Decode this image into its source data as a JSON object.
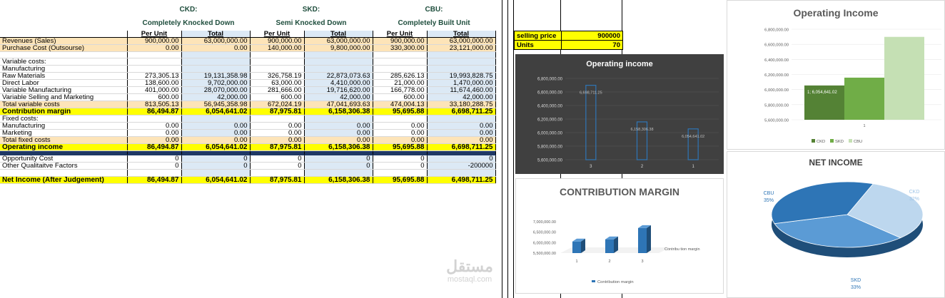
{
  "headers": [
    {
      "code": "CKD:",
      "name": "Completely Knocked Down"
    },
    {
      "code": "SKD:",
      "name": "Semi Knocked Down"
    },
    {
      "code": "CBU:",
      "name": "Completely Built Unit"
    }
  ],
  "col_headers": [
    "Per Unit",
    "Total",
    "Per Unit",
    "Total",
    "Per Unit",
    "Total"
  ],
  "rows": [
    {
      "label": "Revenues  (Sales)",
      "style": "orange",
      "values": [
        "900,000.00",
        "63,000,000.00",
        "900,000.00",
        "63,000,000.00",
        "900,000.00",
        "63,000,000.00"
      ]
    },
    {
      "label": "Purchase Cost (Outsourse)",
      "style": "orange",
      "values": [
        "0.00",
        "0.00",
        "140,000.00",
        "9,800,000.00",
        "330,300.00",
        "23,121,000.00"
      ]
    },
    {
      "label": "",
      "style": "",
      "values": [
        "",
        "",
        "",
        "",
        "",
        ""
      ]
    },
    {
      "label": "Variable costs:",
      "style": "",
      "values": [
        "",
        "",
        "",
        "",
        "",
        ""
      ]
    },
    {
      "label": "Manufacturing",
      "style": "",
      "values": [
        "",
        "",
        "",
        "",
        "",
        ""
      ]
    },
    {
      "label": "Raw Materials",
      "style": "",
      "values": [
        "273,305.13",
        "19,131,358.98",
        "326,758.19",
        "22,873,073.63",
        "285,626.13",
        "19,993,828.75"
      ]
    },
    {
      "label": "Direct Labor",
      "style": "",
      "values": [
        "138,600.00",
        "9,702,000.00",
        "63,000.00",
        "4,410,000.00",
        "21,000.00",
        "1,470,000.00"
      ]
    },
    {
      "label": "Variable Manufacturing",
      "style": "",
      "values": [
        "401,000.00",
        "28,070,000.00",
        "281,666.00",
        "19,716,620.00",
        "166,778.00",
        "11,674,460.00"
      ]
    },
    {
      "label": "Variable Selling and Marketing",
      "style": "",
      "values": [
        "600.00",
        "42,000.00",
        "600.00",
        "42,000.00",
        "600.00",
        "42,000.00"
      ]
    },
    {
      "label": "Total variable costs",
      "style": "orange",
      "values": [
        "813,505.13",
        "56,945,358.98",
        "672,024.19",
        "47,041,693.63",
        "474,004.13",
        "33,180,288.75"
      ]
    },
    {
      "label": "Contribution margin",
      "style": "yellow",
      "values": [
        "86,494.87",
        "6,054,641.02",
        "87,975.81",
        "6,158,306.38",
        "95,695.88",
        "6,698,711.25"
      ]
    },
    {
      "label": "Fixed costs:",
      "style": "",
      "values": [
        "",
        "",
        "",
        "",
        "",
        ""
      ]
    },
    {
      "label": "Manufacturing",
      "style": "",
      "values": [
        "0.00",
        "0.00",
        "0.00",
        "0.00",
        "0.00",
        "0.00"
      ]
    },
    {
      "label": "Marketing",
      "style": "",
      "values": [
        "0.00",
        "0.00",
        "0.00",
        "0.00",
        "0.00",
        "0.00"
      ]
    },
    {
      "label": "Total fixed costs",
      "style": "orange",
      "values": [
        "0.00",
        "0.00",
        "0.00",
        "0.00",
        "0.00",
        "0.00"
      ]
    },
    {
      "label": "Operating income",
      "style": "yellow",
      "values": [
        "86,494.87",
        "6,054,641.02",
        "87,975.81",
        "6,158,306.38",
        "95,695.88",
        "6,698,711.25"
      ]
    },
    {
      "label": "",
      "style": "navy",
      "values": [
        "",
        "",
        "",
        "",
        "",
        ""
      ]
    },
    {
      "label": "Opportunity Cost",
      "style": "",
      "values": [
        "0",
        "0",
        "0",
        "0",
        "0",
        "0"
      ]
    },
    {
      "label": "Other Qualitaitve Factors",
      "style": "",
      "values": [
        "0",
        "0",
        "0",
        "0",
        "0",
        "-200000"
      ]
    },
    {
      "label": "",
      "style": "",
      "values": [
        "",
        "",
        "",
        "",
        "",
        ""
      ]
    },
    {
      "label": "Net Income (After Judgement)",
      "style": "yellow",
      "values": [
        "86,494.87",
        "6,054,641.02",
        "87,975.81",
        "6,158,306.38",
        "95,695.88",
        "6,498,711.25"
      ]
    }
  ],
  "selling": {
    "price_label": "selling price",
    "price_value": "900000",
    "units_label": "Units",
    "units_value": "70"
  },
  "chart_data": [
    {
      "type": "bar",
      "title": "Operating income",
      "categories": [
        "3",
        "2",
        "1"
      ],
      "values": [
        6698711.25,
        6158306.38,
        6054641.02
      ],
      "data_labels": [
        "6,698,711.25",
        "6,158,306.38",
        "6,054,641.02"
      ],
      "yticks": [
        "5,600,000.00",
        "5,800,000.00",
        "6,000,000.00",
        "6,200,000.00",
        "6,400,000.00",
        "6,600,000.00",
        "6,800,000.00"
      ],
      "ylim": [
        5600000,
        6800000
      ]
    },
    {
      "type": "bar",
      "title": "Operating Income",
      "categories": [
        "1"
      ],
      "series": [
        {
          "name": "CKD",
          "values": [
            6054641.02
          ]
        },
        {
          "name": "SKD",
          "values": [
            6158306.38
          ]
        },
        {
          "name": "CBU",
          "values": [
            6698711.25
          ]
        }
      ],
      "data_label": "1; 6,054,641.02",
      "yticks": [
        "5,600,000.00",
        "5,800,000.00",
        "6,000,000.00",
        "6,200,000.00",
        "6,400,000.00",
        "6,600,000.00",
        "6,800,000.00"
      ],
      "ylim": [
        5600000,
        6800000
      ],
      "legend": "bottom"
    },
    {
      "type": "bar",
      "title": "CONTRIBUTION MARGIN",
      "categories": [
        "1",
        "2",
        "3"
      ],
      "series": [
        {
          "name": "Contribution margin",
          "values": [
            6054641.02,
            6158306.38,
            6698711.25
          ]
        }
      ],
      "yticks": [
        "5,500,000.00",
        "6,000,000.00",
        "6,500,000.00",
        "7,000,000.00"
      ],
      "ylim": [
        5500000,
        7000000
      ],
      "axis_label": "Contribu tion margin",
      "legend": "bottom"
    },
    {
      "type": "pie",
      "title": "NET INCOME",
      "labels": [
        "CKD",
        "SKD",
        "CBU"
      ],
      "percent_labels": [
        "32%",
        "33%",
        "35%"
      ],
      "values": [
        32,
        33,
        35
      ]
    }
  ],
  "watermark": {
    "arabic": "مستقل",
    "latin": "mostaql.com"
  }
}
